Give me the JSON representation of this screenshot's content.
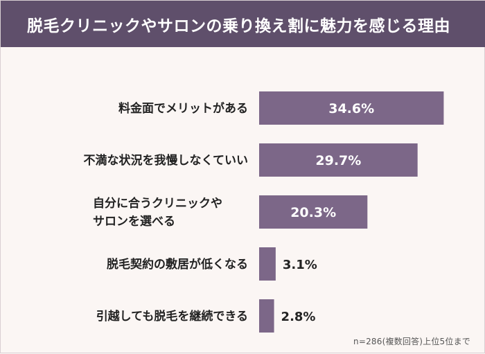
{
  "chart_data": {
    "type": "bar",
    "orientation": "horizontal",
    "title": "脱毛クリニックやサロンの乗り換え割に魅力を感じる理由",
    "categories": [
      [
        "料金面でメリットがある"
      ],
      [
        "不満な状況を我慢しなくていい"
      ],
      [
        "自分に合うクリニックや",
        "サロンを選べる"
      ],
      [
        "脱毛契約の敷居が低くなる"
      ],
      [
        "引越しても脱毛を継続できる"
      ]
    ],
    "values": [
      34.6,
      29.7,
      20.3,
      3.1,
      2.8
    ],
    "value_labels": [
      "34.6%",
      "29.7%",
      "20.3%",
      "3.1%",
      "2.8%"
    ],
    "xlim": [
      0,
      40
    ],
    "grid": false,
    "note": "n=286(複数回答)上位5位まで",
    "colors": {
      "bar": "#7c6788",
      "header": "#5f4f6b",
      "background": "#fbf6f4",
      "label": "#222222"
    }
  }
}
